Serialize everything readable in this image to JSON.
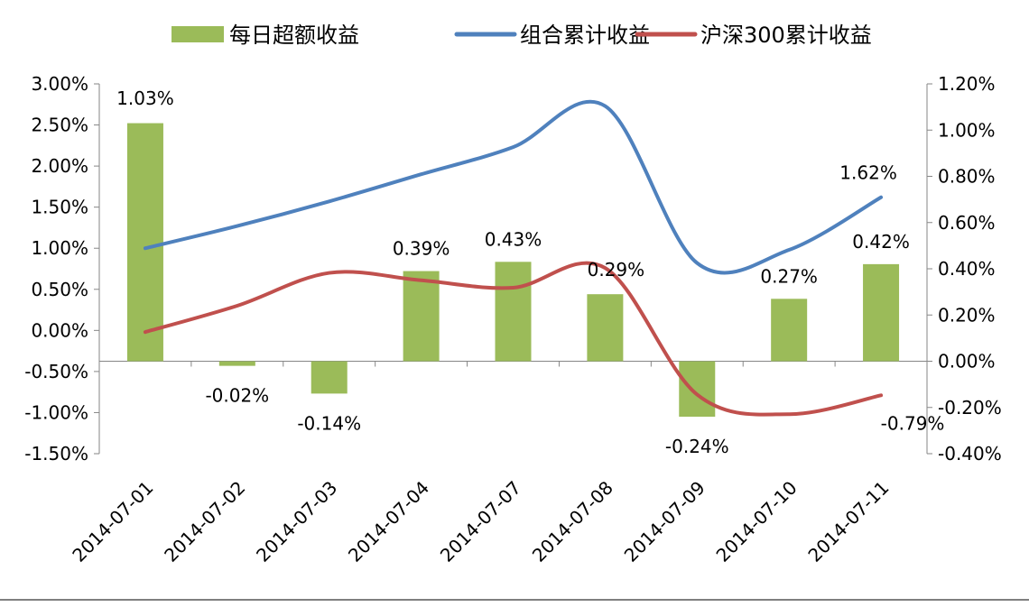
{
  "chart_data": {
    "type": "bar",
    "title": "",
    "legend_position": "top",
    "legend": [
      {
        "name": "每日超额收益",
        "kind": "bar",
        "color": "#9bbb59"
      },
      {
        "name": "组合累计收益",
        "kind": "line",
        "color": "#4f81bd"
      },
      {
        "name": "沪深300累计收益",
        "kind": "line",
        "color": "#c0504d"
      }
    ],
    "categories": [
      "2014-07-01",
      "2014-07-02",
      "2014-07-03",
      "2014-07-04",
      "2014-07-07",
      "2014-07-08",
      "2014-07-09",
      "2014-07-10",
      "2014-07-11"
    ],
    "series": [
      {
        "name": "每日超额收益",
        "type": "bar",
        "axis": "right",
        "values": [
          1.03,
          -0.02,
          -0.14,
          0.39,
          0.43,
          0.29,
          -0.24,
          0.27,
          0.42
        ],
        "labels": [
          "1.03%",
          "-0.02%",
          "-0.14%",
          "0.39%",
          "0.43%",
          "0.29%",
          "-0.24%",
          "0.27%",
          "0.42%"
        ]
      },
      {
        "name": "组合累计收益",
        "type": "line",
        "axis": "left",
        "values": [
          1.0,
          1.27,
          1.57,
          1.9,
          2.23,
          2.73,
          0.82,
          0.98,
          1.62
        ],
        "labels": [
          "",
          "",
          "",
          "",
          "",
          "",
          "",
          "",
          "1.62%"
        ]
      },
      {
        "name": "沪深300累计收益",
        "type": "line",
        "axis": "left",
        "values": [
          -0.02,
          0.3,
          0.7,
          0.61,
          0.52,
          0.76,
          -0.78,
          -1.02,
          -0.79
        ],
        "labels": [
          "",
          "",
          "",
          "",
          "",
          "",
          "",
          "",
          "-0.79%"
        ]
      }
    ],
    "y_left": {
      "min": -1.5,
      "max": 3.0,
      "step": 0.5,
      "ticks": [
        "-1.50%",
        "-1.00%",
        "-0.50%",
        "0.00%",
        "0.50%",
        "1.00%",
        "1.50%",
        "2.00%",
        "2.50%",
        "3.00%"
      ]
    },
    "y_right": {
      "min": -0.4,
      "max": 1.2,
      "step": 0.2,
      "ticks": [
        "-0.40%",
        "-0.20%",
        "0.00%",
        "0.20%",
        "0.40%",
        "0.60%",
        "0.80%",
        "1.00%",
        "1.20%"
      ]
    },
    "grid": false
  }
}
